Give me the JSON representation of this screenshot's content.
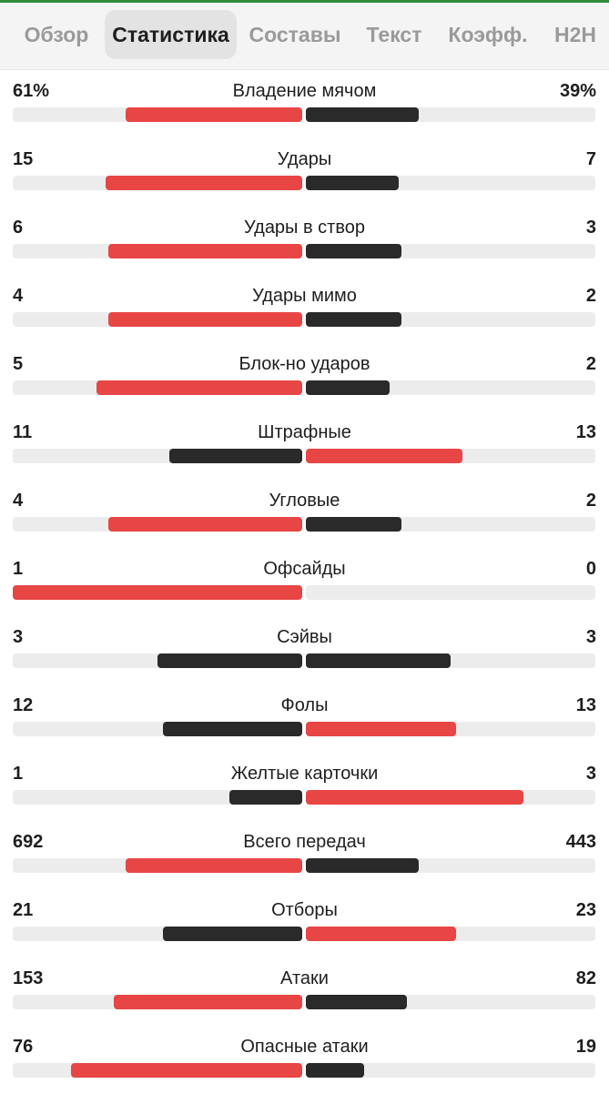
{
  "colors": {
    "accent": "#2e8b3a",
    "winner_bar": "#e84545",
    "loser_bar": "#2a2a2a",
    "track": "#ececec"
  },
  "tabs": [
    {
      "label": "Обзор",
      "active": false
    },
    {
      "label": "Статистика",
      "active": true
    },
    {
      "label": "Составы",
      "active": false
    },
    {
      "label": "Текст",
      "active": false
    },
    {
      "label": "Коэфф.",
      "active": false
    },
    {
      "label": "H2H",
      "active": false
    }
  ],
  "stats": [
    {
      "label": "Владение мячом",
      "home": "61%",
      "away": "39%",
      "home_share": 0.61,
      "away_share": 0.39
    },
    {
      "label": "Удары",
      "home": "15",
      "away": "7",
      "home_share": 0.68,
      "away_share": 0.32
    },
    {
      "label": "Удары в створ",
      "home": "6",
      "away": "3",
      "home_share": 0.67,
      "away_share": 0.33
    },
    {
      "label": "Удары мимо",
      "home": "4",
      "away": "2",
      "home_share": 0.67,
      "away_share": 0.33
    },
    {
      "label": "Блок-но ударов",
      "home": "5",
      "away": "2",
      "home_share": 0.71,
      "away_share": 0.29
    },
    {
      "label": "Штрафные",
      "home": "11",
      "away": "13",
      "home_share": 0.46,
      "away_share": 0.54
    },
    {
      "label": "Угловые",
      "home": "4",
      "away": "2",
      "home_share": 0.67,
      "away_share": 0.33
    },
    {
      "label": "Офсайды",
      "home": "1",
      "away": "0",
      "home_share": 1.0,
      "away_share": 0.0
    },
    {
      "label": "Сэйвы",
      "home": "3",
      "away": "3",
      "home_share": 0.5,
      "away_share": 0.5
    },
    {
      "label": "Фолы",
      "home": "12",
      "away": "13",
      "home_share": 0.48,
      "away_share": 0.52
    },
    {
      "label": "Желтые карточки",
      "home": "1",
      "away": "3",
      "home_share": 0.25,
      "away_share": 0.75
    },
    {
      "label": "Всего передач",
      "home": "692",
      "away": "443",
      "home_share": 0.61,
      "away_share": 0.39
    },
    {
      "label": "Отборы",
      "home": "21",
      "away": "23",
      "home_share": 0.48,
      "away_share": 0.52
    },
    {
      "label": "Атаки",
      "home": "153",
      "away": "82",
      "home_share": 0.65,
      "away_share": 0.35
    },
    {
      "label": "Опасные атаки",
      "home": "76",
      "away": "19",
      "home_share": 0.8,
      "away_share": 0.2
    }
  ]
}
